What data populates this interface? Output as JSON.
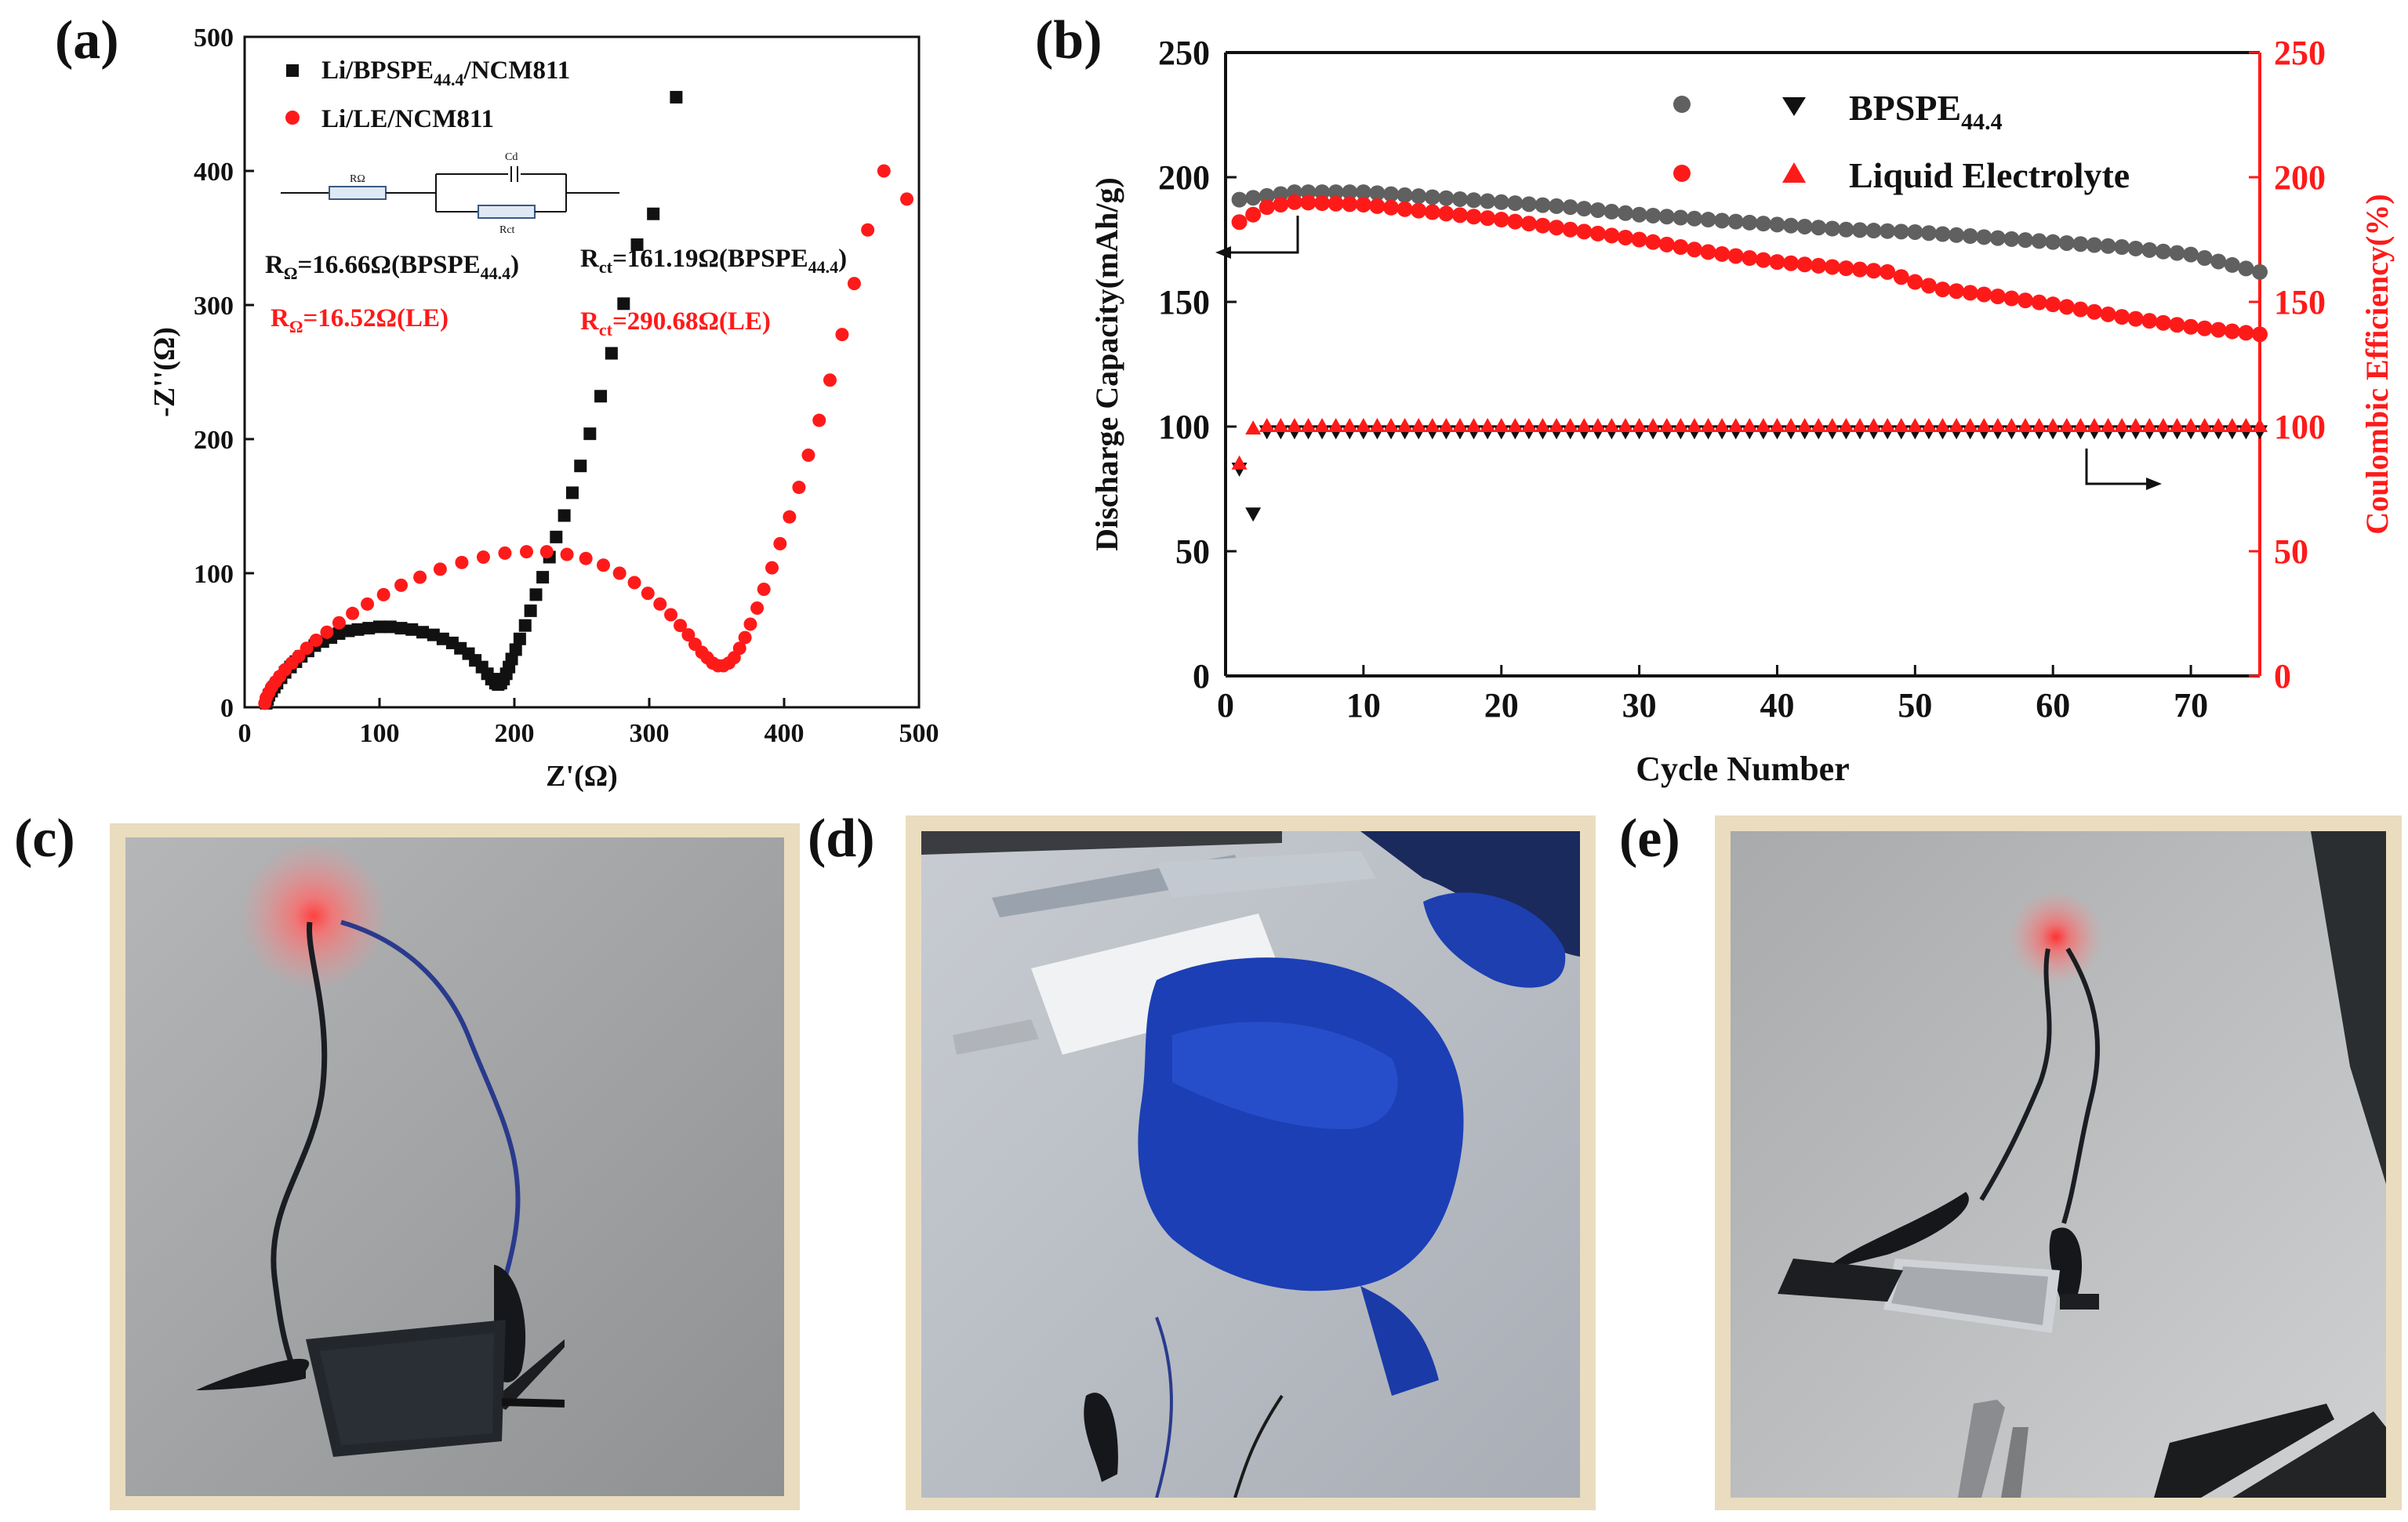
{
  "panels": {
    "a": {
      "label": "(a)"
    },
    "b": {
      "label": "(b)"
    },
    "c": {
      "label": "(c)"
    },
    "d": {
      "label": "(d)"
    },
    "e": {
      "label": "(e)"
    }
  },
  "circuit": {
    "r_omega": "RΩ",
    "cd": "Cd",
    "rct": "Rct"
  },
  "colors": {
    "black": "#111111",
    "red": "#ff1a1a",
    "gray": "#606060",
    "frame": "#eadcbf"
  },
  "chart_data": [
    {
      "type": "scatter",
      "title": "",
      "xlabel": "Z'(Ω)",
      "ylabel": "-Z''(Ω)",
      "xlim": [
        0,
        500
      ],
      "ylim": [
        0,
        500
      ],
      "xticks": [
        "0",
        "100",
        "200",
        "300",
        "400",
        "500"
      ],
      "yticks": [
        "0",
        "100",
        "200",
        "300",
        "400",
        "500"
      ],
      "legend": [
        {
          "label_main": "Li/BPSPE",
          "label_sub": "44.4",
          "label_tail": "/NCM811",
          "color": "#111111",
          "marker": "square"
        },
        {
          "label_main": "Li/LE/NCM811",
          "label_sub": "",
          "label_tail": "",
          "color": "#ff1a1a",
          "marker": "circle"
        }
      ],
      "annotations": {
        "r_omega_bpspe": {
          "main": "R",
          "sub": "Ω",
          "text": "=16.66Ω(BPSPE",
          "sub2": "44.4",
          "tail": ")"
        },
        "rct_bpspe": {
          "main": "R",
          "sub": "ct",
          "text": "=161.19Ω(BPSPE",
          "sub2": "44.4",
          "tail": ")"
        },
        "r_omega_le": {
          "main": "R",
          "sub": "Ω",
          "text": "=16.52Ω(LE)"
        },
        "rct_le": {
          "main": "R",
          "sub": "ct",
          "text": "=290.68Ω(LE)"
        }
      },
      "series": [
        {
          "name": "Li/BPSPE44.4/NCM811",
          "x": [
            16,
            17,
            18,
            20,
            22,
            24,
            27,
            30,
            34,
            38,
            42,
            47,
            52,
            58,
            64,
            70,
            77,
            84,
            92,
            100,
            108,
            116,
            124,
            132,
            140,
            147,
            154,
            160,
            166,
            171,
            176,
            180,
            183,
            186,
            188,
            190,
            192,
            194,
            196,
            198,
            201,
            204,
            208,
            212,
            216,
            221,
            226,
            231,
            237,
            243,
            249,
            256,
            264,
            272,
            281,
            291,
            303,
            320
          ],
          "y": [
            3,
            6,
            9,
            12,
            15,
            18,
            22,
            26,
            30,
            34,
            38,
            42,
            46,
            49,
            52,
            55,
            57,
            58,
            59,
            60,
            60,
            59,
            58,
            56,
            54,
            51,
            48,
            44,
            40,
            35,
            30,
            25,
            21,
            18,
            17,
            18,
            21,
            25,
            30,
            36,
            43,
            51,
            61,
            72,
            84,
            97,
            112,
            127,
            143,
            160,
            180,
            204,
            232,
            264,
            301,
            345,
            368,
            455
          ]
        },
        {
          "name": "Li/LE/NCM811",
          "x": [
            15,
            16,
            18,
            20,
            23,
            26,
            30,
            35,
            40,
            46,
            53,
            61,
            70,
            80,
            91,
            103,
            116,
            130,
            145,
            161,
            177,
            193,
            209,
            224,
            239,
            253,
            266,
            278,
            289,
            299,
            308,
            316,
            323,
            329,
            334,
            339,
            343,
            347,
            351,
            355,
            359,
            363,
            367,
            371,
            375,
            380,
            385,
            391,
            397,
            404,
            411,
            418,
            426,
            434,
            443,
            452,
            462,
            474,
            491
          ],
          "y": [
            3,
            7,
            11,
            15,
            19,
            23,
            28,
            33,
            38,
            44,
            50,
            56,
            63,
            70,
            77,
            84,
            91,
            97,
            103,
            108,
            112,
            115,
            116,
            116,
            114,
            111,
            106,
            100,
            93,
            85,
            77,
            69,
            61,
            54,
            47,
            41,
            37,
            33,
            31,
            31,
            33,
            37,
            44,
            52,
            62,
            74,
            88,
            104,
            122,
            142,
            164,
            188,
            214,
            244,
            278,
            316,
            356,
            400,
            379
          ]
        }
      ]
    },
    {
      "type": "scatter",
      "title": "",
      "xlabel": "Cycle Number",
      "ylabel": "Discharge Capacity(mAh/g)",
      "y2label": "Coulombic Efficiency(%)",
      "xlim": [
        0,
        75
      ],
      "ylim": [
        0,
        250
      ],
      "y2lim": [
        0,
        250
      ],
      "xticks": [
        "0",
        "10",
        "20",
        "30",
        "40",
        "50",
        "60",
        "70"
      ],
      "yticks": [
        "0",
        "50",
        "100",
        "150",
        "200",
        "250"
      ],
      "y2ticks": [
        "0",
        "50",
        "100",
        "150",
        "200",
        "250"
      ],
      "legend": [
        {
          "label_main": "BPSPE",
          "label_sub": "44.4",
          "capacity_color": "#606060",
          "ce_color": "#111111",
          "ce_marker": "triangle-down"
        },
        {
          "label_main": "Liquid Electrolyte",
          "label_sub": "",
          "capacity_color": "#ff1a1a",
          "ce_color": "#ff1a1a",
          "ce_marker": "triangle-up"
        }
      ],
      "series": [
        {
          "name": "BPSPE44.4 capacity",
          "axis": "left",
          "x": [
            1,
            5,
            10,
            15,
            20,
            25,
            30,
            35,
            40,
            45,
            50,
            55,
            60,
            65,
            70,
            75
          ],
          "y": [
            191,
            194,
            194,
            192,
            190,
            188,
            185,
            183,
            181,
            179,
            178,
            176,
            174,
            172,
            169,
            162
          ]
        },
        {
          "name": "Liquid Electrolyte capacity",
          "axis": "left",
          "x": [
            1,
            3,
            5,
            10,
            15,
            20,
            25,
            30,
            35,
            40,
            44,
            48,
            50,
            52,
            55,
            60,
            65,
            70,
            75
          ],
          "y": [
            182,
            188,
            190,
            189,
            186,
            183,
            179,
            175,
            170,
            166,
            164,
            162,
            158,
            155,
            153,
            149,
            144,
            140,
            137
          ]
        },
        {
          "name": "BPSPE44.4 coulombic efficiency",
          "axis": "right",
          "x": [
            1,
            2,
            3,
            75
          ],
          "y": [
            83,
            65,
            98,
            98
          ]
        },
        {
          "name": "Liquid Electrolyte coulombic efficiency",
          "axis": "right",
          "x": [
            1,
            2,
            3,
            75
          ],
          "y": [
            85,
            99,
            100,
            100
          ]
        }
      ]
    }
  ]
}
